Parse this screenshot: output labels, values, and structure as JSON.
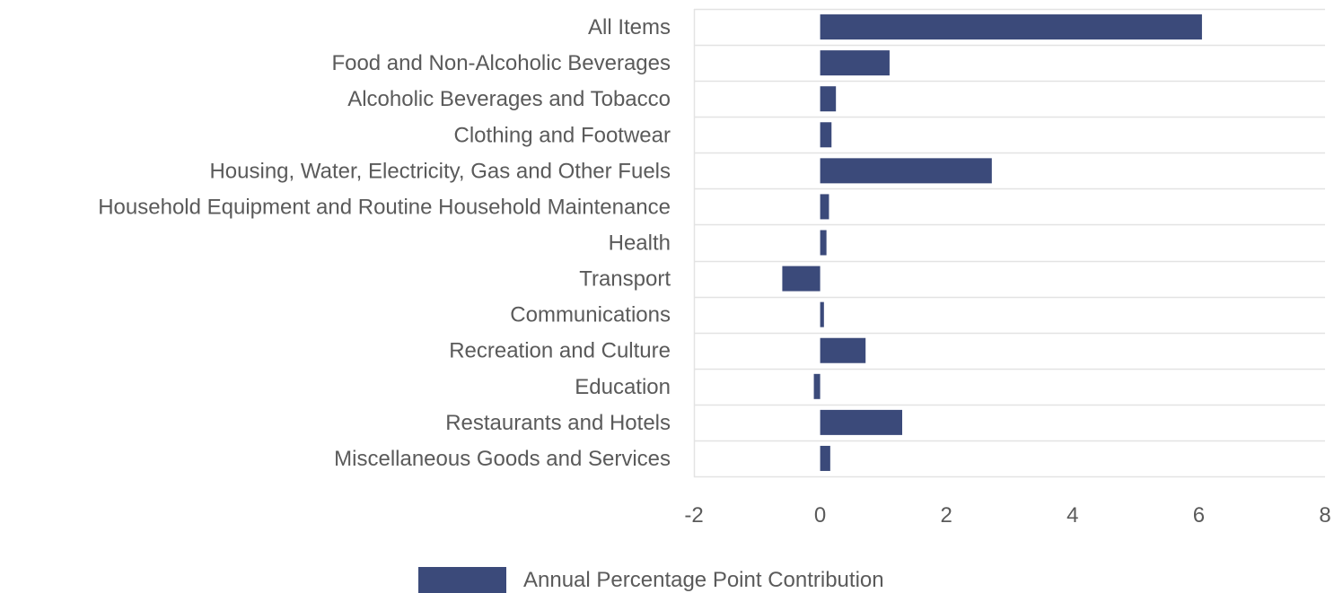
{
  "chart_data": {
    "type": "bar",
    "orientation": "horizontal",
    "categories": [
      "All Items",
      "Food and Non-Alcoholic Beverages",
      "Alcoholic Beverages and Tobacco",
      "Clothing and Footwear",
      "Housing, Water, Electricity, Gas and Other Fuels",
      "Household Equipment and Routine Household Maintenance",
      "Health",
      "Transport",
      "Communications",
      "Recreation and Culture",
      "Education",
      "Restaurants and Hotels",
      "Miscellaneous Goods and Services"
    ],
    "series": [
      {
        "name": "Annual Percentage Point Contribution",
        "color": "#3b4a7a",
        "values": [
          6.05,
          1.1,
          0.25,
          0.18,
          2.72,
          0.14,
          0.1,
          -0.6,
          0.06,
          0.72,
          -0.1,
          1.3,
          0.16
        ]
      }
    ],
    "xlim": [
      -2,
      8
    ],
    "xticks": [
      "-2",
      "0",
      "2",
      "4",
      "6",
      "8"
    ],
    "xtick_values": [
      -2,
      0,
      2,
      4,
      6,
      8
    ],
    "title": "",
    "xlabel": "",
    "ylabel": "",
    "grid": "horizontal",
    "legend_position": "bottom-center"
  },
  "colors": {
    "bar": "#3b4a7a",
    "grid": "#e3e3e3",
    "text": "#5a5a5a"
  }
}
